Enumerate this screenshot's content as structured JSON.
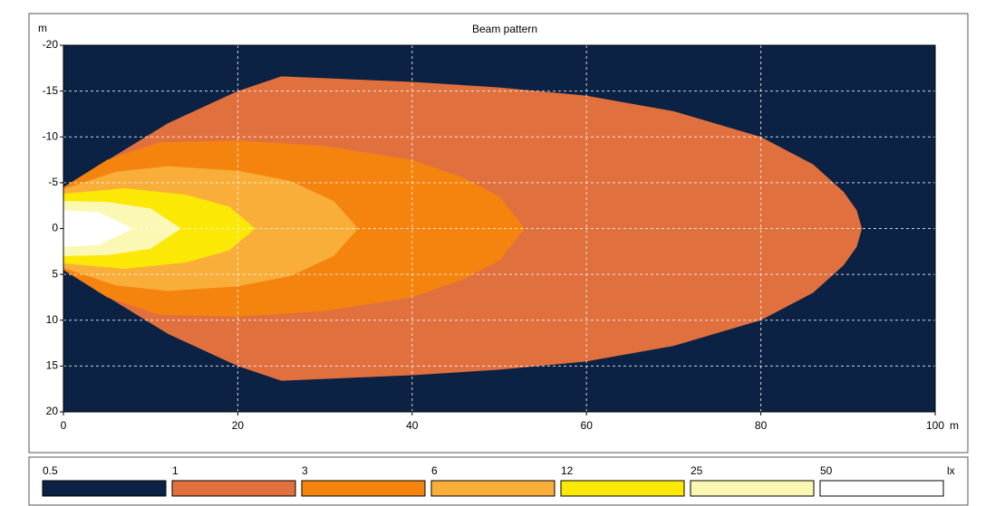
{
  "chart_data": {
    "type": "contour",
    "title": "Beam pattern",
    "x_label": "m",
    "y_label": "m",
    "xlim": [
      0,
      100
    ],
    "xticks": [
      0,
      20,
      40,
      60,
      80,
      100
    ],
    "ylim": [
      -20,
      20
    ],
    "yticks": [
      -20,
      -15,
      -10,
      -5,
      0,
      5,
      10,
      15,
      20
    ],
    "y_inverted": true,
    "grid": true,
    "background_level": 0.5,
    "background_color": "#0b2244",
    "unit": "lx",
    "contours": [
      {
        "level": 1,
        "color": "#e0703e",
        "x": [
          0,
          6,
          12,
          20,
          25,
          40,
          50,
          60,
          70,
          80,
          86,
          89.5,
          91,
          91.6,
          91,
          89.5,
          86,
          80,
          70,
          60,
          50,
          40,
          25,
          20,
          12,
          6,
          0
        ],
        "y": [
          -4.5,
          -8,
          -11.5,
          -15,
          -16.6,
          -16,
          -15.4,
          -14.5,
          -12.8,
          -10,
          -7,
          -4,
          -2,
          0,
          2,
          4,
          7,
          10,
          12.8,
          14.5,
          15.4,
          16,
          16.6,
          15,
          11.5,
          8,
          4.5
        ]
      },
      {
        "level": 3,
        "color": "#f5840f",
        "x": [
          0,
          5,
          11,
          20,
          30,
          40,
          46,
          50,
          52.9,
          50,
          46,
          40,
          30,
          20,
          11,
          5,
          0
        ],
        "y": [
          -4.5,
          -7.5,
          -9.4,
          -9.6,
          -9,
          -7.5,
          -5.5,
          -3.5,
          0,
          3.5,
          5.5,
          7.5,
          9,
          9.6,
          9.4,
          7.5,
          4.5
        ]
      },
      {
        "level": 6,
        "color": "#f9ae3a",
        "x": [
          0,
          6,
          12,
          20,
          26,
          31,
          33.8,
          31,
          26,
          20,
          12,
          6,
          0
        ],
        "y": [
          -4.3,
          -6.2,
          -6.8,
          -6.3,
          -5.2,
          -3,
          0,
          3,
          5.2,
          6.3,
          6.8,
          6.2,
          4.3
        ]
      },
      {
        "level": 12,
        "color": "#fbe805",
        "x": [
          0,
          7,
          14,
          19,
          22,
          19,
          14,
          7,
          0
        ],
        "y": [
          -3.8,
          -4.4,
          -3.7,
          -2.4,
          0,
          2.4,
          3.7,
          4.4,
          3.8
        ]
      },
      {
        "level": 25,
        "color": "#fbf8b4",
        "x": [
          0,
          5,
          10,
          13.5,
          10,
          5,
          0
        ],
        "y": [
          -3,
          -2.9,
          -2.2,
          0,
          2.2,
          2.9,
          3
        ]
      },
      {
        "level": 50,
        "color": "#ffffff",
        "x": [
          0,
          4,
          8,
          4,
          0
        ],
        "y": [
          -2,
          -1.8,
          0,
          1.8,
          2
        ]
      }
    ]
  }
}
